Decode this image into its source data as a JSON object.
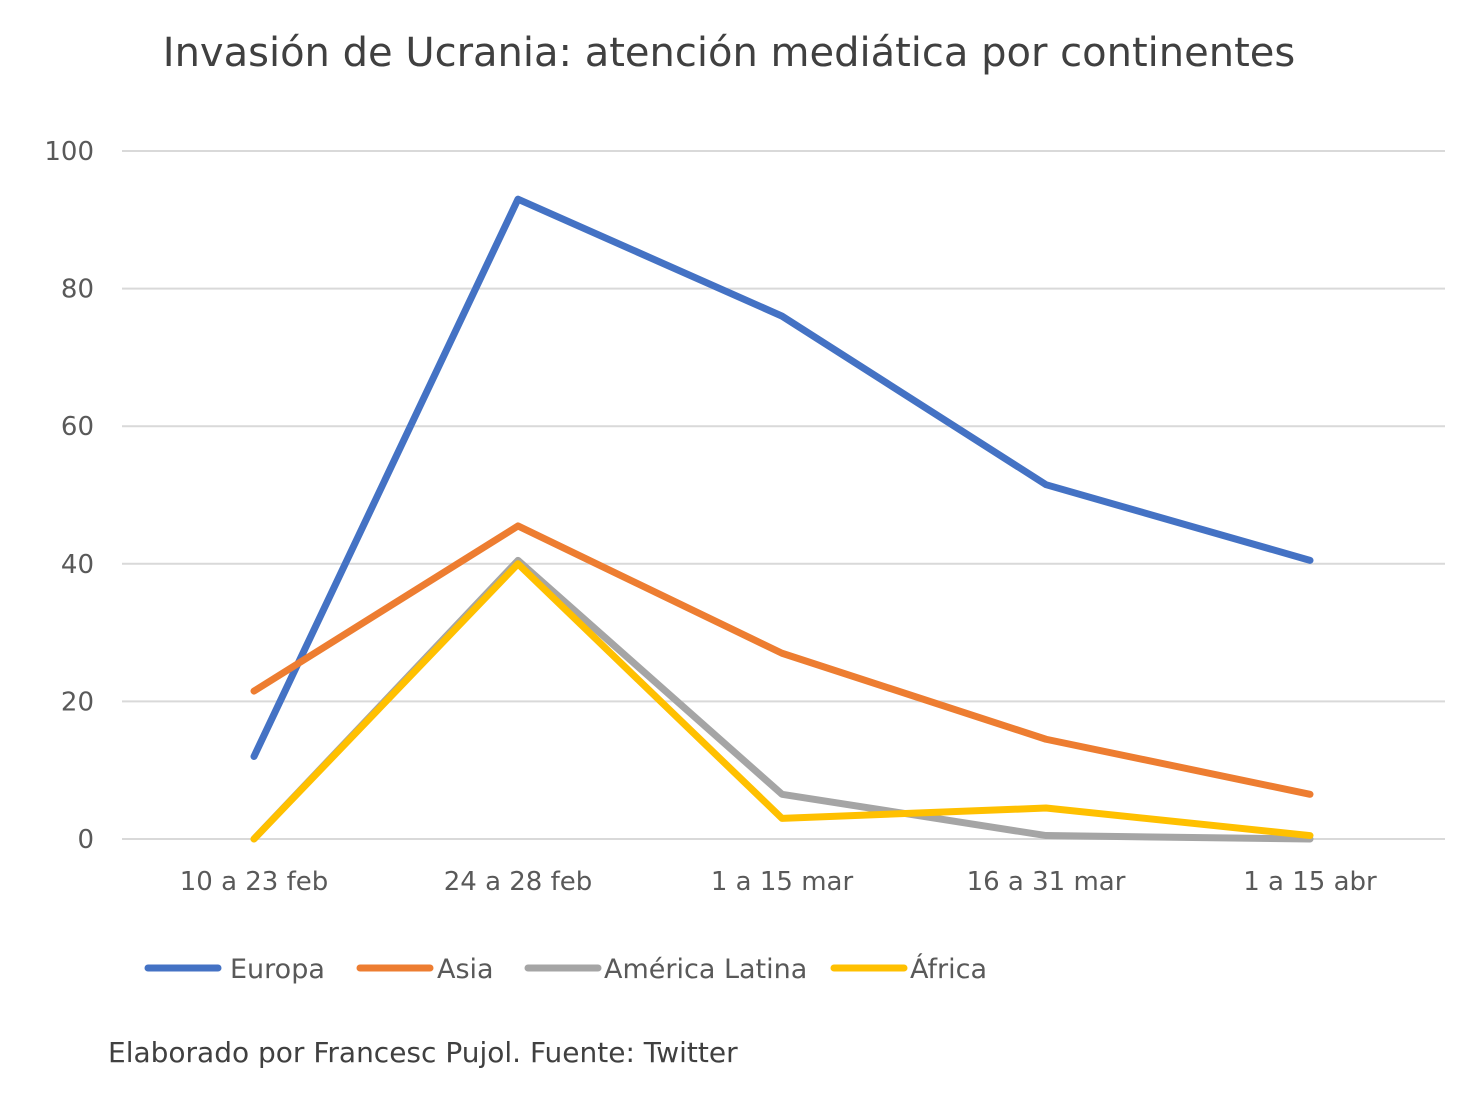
{
  "chart_data": {
    "type": "line",
    "title": "Invasión de Ucrania: atención mediática por continentes",
    "categories": [
      "10 a 23 feb",
      "24 a 28 feb",
      "1 a 15 mar",
      "16 a 31 mar",
      "1 a 15 abr"
    ],
    "ylim": [
      0,
      100
    ],
    "yticks": [
      0,
      20,
      40,
      60,
      80,
      100
    ],
    "grid": true,
    "legend_position": "bottom-left",
    "series": [
      {
        "name": "Europa",
        "color": "#4472C4",
        "values": [
          12,
          93,
          76,
          51.5,
          40.5
        ]
      },
      {
        "name": "Asia",
        "color": "#ED7D31",
        "values": [
          21.5,
          45.5,
          27,
          14.5,
          6.5
        ]
      },
      {
        "name": "América Latina",
        "color": "#A5A5A5",
        "values": [
          0,
          40.5,
          6.5,
          0.5,
          0
        ]
      },
      {
        "name": "África",
        "color": "#FFC000",
        "values": [
          0,
          40,
          3,
          4.5,
          0.5
        ]
      }
    ]
  },
  "footnote": "Elaborado por Francesc Pujol. Fuente: Twitter"
}
